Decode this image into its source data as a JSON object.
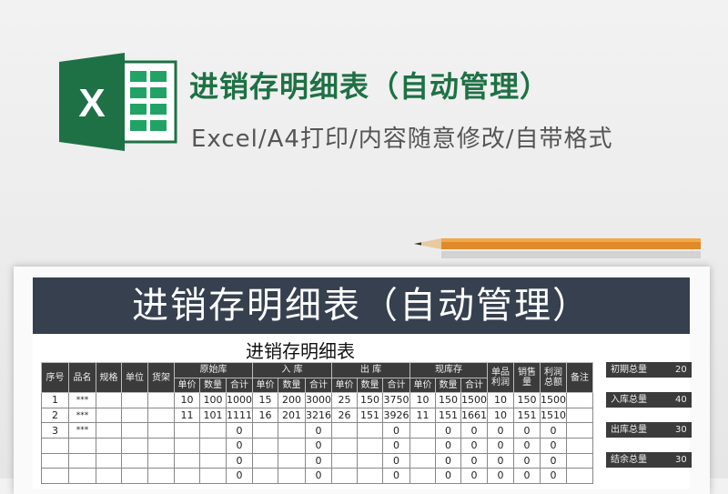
{
  "header": {
    "title": "进销存明细表（自动管理）",
    "subtitle": "Excel/A4打印/内容随意修改/自带格式",
    "logo_letter": "X"
  },
  "colors": {
    "brand_green": "#1e7145",
    "band": "#36404f",
    "header_cell": "#3b3b3b"
  },
  "sheet": {
    "banner": "进销存明细表（自动管理）",
    "title": "进销存明细表",
    "headers": {
      "seq": "序号",
      "name": "品名",
      "spec": "规格",
      "unit": "单位",
      "shelf": "货架",
      "orig": "原始库",
      "in": "入  库",
      "out": "出  库",
      "stock": "现库存",
      "unit_profit": "单品利润",
      "sales": "销售量",
      "profit_total": "利润总额",
      "note": "备注",
      "price": "单价",
      "qty": "数量",
      "total": "合计"
    },
    "rows": [
      [
        "1",
        "***",
        "",
        "",
        "",
        "10",
        "100",
        "1000",
        "15",
        "200",
        "3000",
        "25",
        "150",
        "3750",
        "10",
        "150",
        "1500",
        "10",
        "150",
        "1500",
        ""
      ],
      [
        "2",
        "***",
        "",
        "",
        "",
        "11",
        "101",
        "1111",
        "16",
        "201",
        "3216",
        "26",
        "151",
        "3926",
        "11",
        "151",
        "1661",
        "10",
        "151",
        "1510",
        ""
      ],
      [
        "3",
        "***",
        "",
        "",
        "",
        "",
        "",
        "0",
        "",
        "",
        "0",
        "",
        "",
        "0",
        "",
        "0",
        "0",
        "0",
        "0",
        "0",
        ""
      ],
      [
        "",
        "",
        "",
        "",
        "",
        "",
        "",
        "0",
        "",
        "",
        "0",
        "",
        "",
        "0",
        "",
        "0",
        "0",
        "0",
        "0",
        "0",
        ""
      ],
      [
        "",
        "",
        "",
        "",
        "",
        "",
        "",
        "0",
        "",
        "",
        "0",
        "",
        "",
        "0",
        "",
        "0",
        "0",
        "0",
        "0",
        "0",
        ""
      ],
      [
        "",
        "",
        "",
        "",
        "",
        "",
        "",
        "0",
        "",
        "",
        "0",
        "",
        "",
        "0",
        "",
        "0",
        "0",
        "0",
        "0",
        "0",
        ""
      ]
    ],
    "summary": [
      {
        "label": "初期总量",
        "value": "20"
      },
      {
        "label": "入库总量",
        "value": "40"
      },
      {
        "label": "出库总量",
        "value": "30"
      },
      {
        "label": "结余总量",
        "value": "30"
      }
    ]
  }
}
